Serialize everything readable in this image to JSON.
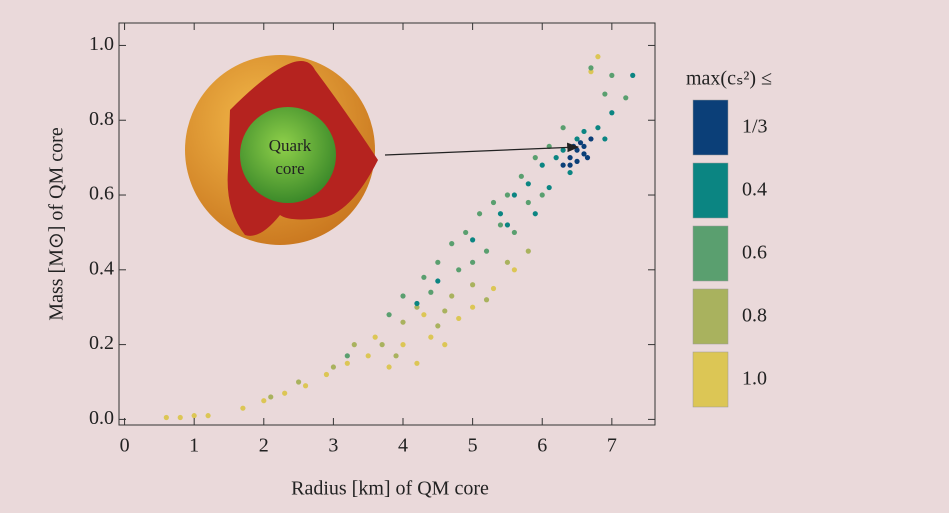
{
  "chart_data": {
    "type": "scatter",
    "xlabel": "Radius [km] of QM core",
    "ylabel": "Mass [M⊙] of QM core",
    "legend_title": "max(cₛ²) ≤",
    "annotations": [
      "Quark",
      "core"
    ],
    "xlim": [
      -0.08,
      7.62
    ],
    "xticks": [
      0,
      1,
      2,
      3,
      4,
      5,
      6,
      7
    ],
    "ylim": [
      -0.015,
      1.06
    ],
    "yticks": [
      {
        "value": 0,
        "label": "0.0"
      },
      0.2,
      0.4,
      0.6,
      0.8,
      {
        "value": 1,
        "label": "1.0"
      }
    ],
    "legend": "right",
    "series": [
      {
        "name": "1.0",
        "color": "#dcc655",
        "x": [
          0.6,
          0.8,
          1.0,
          1.2,
          1.7,
          2.0,
          2.3,
          2.6,
          2.9,
          3.2,
          3.5,
          3.8,
          4.0,
          4.2,
          4.4,
          4.6,
          4.8,
          5.0,
          5.3,
          5.6,
          3.6,
          4.3,
          6.8,
          6.7
        ],
        "values": [
          0.005,
          0.005,
          0.01,
          0.01,
          0.03,
          0.05,
          0.07,
          0.09,
          0.12,
          0.15,
          0.17,
          0.14,
          0.2,
          0.15,
          0.22,
          0.2,
          0.27,
          0.3,
          0.35,
          0.4,
          0.22,
          0.28,
          0.97,
          0.93
        ]
      },
      {
        "name": "0.8",
        "color": "#a9b25e",
        "x": [
          2.1,
          2.5,
          3.0,
          3.3,
          3.7,
          4.0,
          4.2,
          4.5,
          4.7,
          5.0,
          5.2,
          5.5,
          3.9,
          4.6,
          5.8
        ],
        "values": [
          0.06,
          0.1,
          0.14,
          0.2,
          0.2,
          0.26,
          0.3,
          0.25,
          0.33,
          0.36,
          0.32,
          0.42,
          0.17,
          0.29,
          0.45
        ]
      },
      {
        "name": "0.6",
        "color": "#5a9f6f",
        "x": [
          3.2,
          3.8,
          4.0,
          4.3,
          4.5,
          4.7,
          4.9,
          5.1,
          5.3,
          5.5,
          5.7,
          5.9,
          6.1,
          6.3,
          4.8,
          5.2,
          5.6,
          6.0,
          4.4,
          5.0,
          5.4,
          5.8,
          6.9,
          7.0,
          7.2,
          6.7
        ],
        "values": [
          0.17,
          0.28,
          0.33,
          0.38,
          0.42,
          0.47,
          0.5,
          0.55,
          0.58,
          0.6,
          0.65,
          0.7,
          0.73,
          0.78,
          0.4,
          0.45,
          0.5,
          0.6,
          0.34,
          0.42,
          0.52,
          0.58,
          0.87,
          0.92,
          0.86,
          0.94
        ]
      },
      {
        "name": "0.4",
        "color": "#0b8582",
        "x": [
          5.4,
          5.6,
          5.8,
          6.0,
          6.2,
          6.3,
          6.5,
          6.6,
          6.8,
          7.0,
          7.3,
          5.9,
          6.1,
          6.4,
          5.5,
          6.9,
          4.5,
          4.2,
          5.0
        ],
        "values": [
          0.55,
          0.6,
          0.63,
          0.68,
          0.7,
          0.72,
          0.75,
          0.77,
          0.78,
          0.82,
          0.92,
          0.55,
          0.62,
          0.66,
          0.52,
          0.75,
          0.37,
          0.31,
          0.48
        ]
      },
      {
        "name": "1/3",
        "color": "#0b3f78",
        "x": [
          6.3,
          6.4,
          6.5,
          6.55,
          6.6,
          6.7,
          6.5,
          6.6,
          6.45,
          6.65,
          6.4
        ],
        "values": [
          0.68,
          0.7,
          0.72,
          0.74,
          0.73,
          0.75,
          0.69,
          0.71,
          0.73,
          0.7,
          0.68
        ]
      }
    ]
  }
}
